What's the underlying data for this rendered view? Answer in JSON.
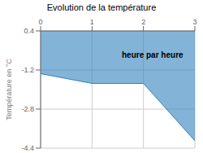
{
  "chart_data": {
    "type": "area",
    "title": "Evolution de la température",
    "ylabel": "Température en °C",
    "annotation": "heure par heure",
    "x": [
      0,
      1,
      2,
      3
    ],
    "values": [
      -1.35,
      -1.75,
      -1.75,
      -4.1
    ],
    "xlim": [
      0,
      3
    ],
    "ylim": [
      -4.4,
      0.4
    ],
    "xticks": [
      0,
      1,
      2,
      3
    ],
    "yticks": [
      0.4,
      -1.2,
      -2.8,
      -4.4
    ],
    "grid": true
  }
}
